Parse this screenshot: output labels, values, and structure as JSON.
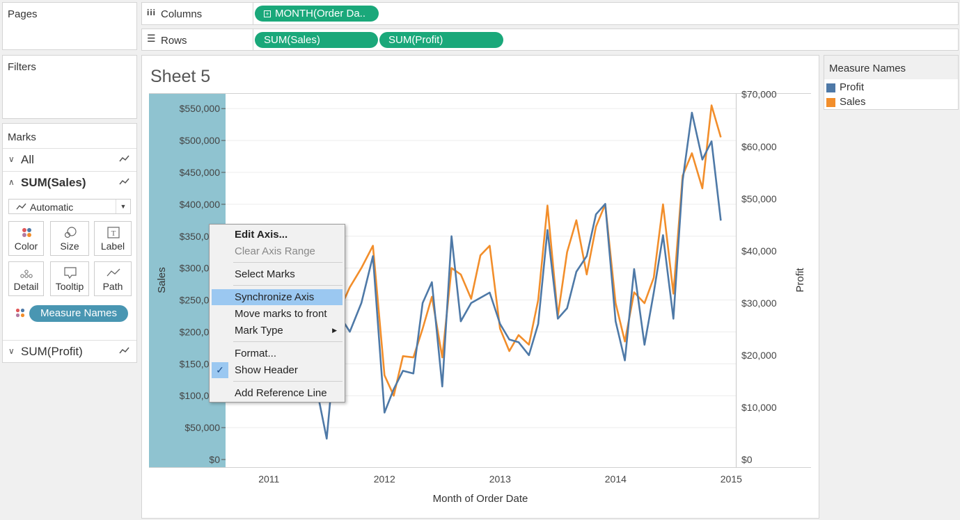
{
  "shelves": {
    "pages_title": "Pages",
    "columns_label": "Columns",
    "rows_label": "Rows",
    "columns_pill": "MONTH(Order Da..",
    "rows_pills": [
      "SUM(Sales)",
      "SUM(Profit)"
    ],
    "filters_title": "Filters"
  },
  "marks": {
    "title": "Marks",
    "all_label": "All",
    "sales_label": "SUM(Sales)",
    "profit_label": "SUM(Profit)",
    "mark_type": "Automatic",
    "cards": [
      {
        "label": "Color",
        "icon": "color-icon"
      },
      {
        "label": "Size",
        "icon": "size-icon"
      },
      {
        "label": "Label",
        "icon": "label-icon"
      },
      {
        "label": "Detail",
        "icon": "detail-icon"
      },
      {
        "label": "Tooltip",
        "icon": "tooltip-icon"
      },
      {
        "label": "Path",
        "icon": "path-icon"
      }
    ],
    "measure_names_pill": "Measure Names"
  },
  "sheet": {
    "title": "Sheet 5"
  },
  "legend": {
    "title": "Measure Names",
    "items": [
      {
        "label": "Profit",
        "color": "#4e79a7"
      },
      {
        "label": "Sales",
        "color": "#f28e2b"
      }
    ]
  },
  "context_menu": {
    "items": [
      {
        "label": "Edit Axis...",
        "state": "bold"
      },
      {
        "label": "Clear Axis Range",
        "state": "disabled"
      },
      {
        "label": "Select Marks",
        "state": "normal"
      },
      {
        "label": "Synchronize Axis",
        "state": "highlighted"
      },
      {
        "label": "Move marks to front",
        "state": "normal"
      },
      {
        "label": "Mark Type",
        "state": "submenu"
      },
      {
        "label": "Format...",
        "state": "normal"
      },
      {
        "label": "Show Header",
        "state": "checked"
      },
      {
        "label": "Add Reference Line",
        "state": "normal"
      }
    ]
  },
  "chart_data": {
    "type": "line",
    "xlabel": "Month of Order Date",
    "ylabel_left": "Sales",
    "ylabel_right": "Profit",
    "x_ticks": [
      "2011",
      "2012",
      "2013",
      "2014",
      "2015"
    ],
    "y_left_ticks": [
      "$550,000",
      "$500,000",
      "$450,000",
      "$400,000",
      "$350,000",
      "$300,000",
      "$250,000",
      "$200,000",
      "$150,000",
      "$100,000",
      "$50,000",
      "$0"
    ],
    "y_left_values": [
      550000,
      500000,
      450000,
      400000,
      350000,
      300000,
      250000,
      200000,
      150000,
      100000,
      50000,
      0
    ],
    "y_right_ticks": [
      "$70,000",
      "$60,000",
      "$50,000",
      "$40,000",
      "$30,000",
      "$20,000",
      "$10,000",
      "$0"
    ],
    "y_right_values": [
      70000,
      60000,
      50000,
      40000,
      30000,
      20000,
      10000,
      0
    ],
    "y_left_range": [
      0,
      560000
    ],
    "y_right_range": [
      0,
      68500
    ],
    "x_range": [
      2010.625,
      2015.04
    ],
    "series": [
      {
        "name": "Sales",
        "color": "#f28e2b",
        "axis": "left",
        "x": [
          2011.2,
          2011.3,
          2011.4,
          2011.5,
          2011.6,
          2011.7,
          2011.8,
          2011.9,
          2012.0,
          2012.08,
          2012.16,
          2012.25,
          2012.33,
          2012.41,
          2012.5,
          2012.58,
          2012.66,
          2012.75,
          2012.83,
          2012.91,
          2013.0,
          2013.08,
          2013.16,
          2013.25,
          2013.33,
          2013.41,
          2013.5,
          2013.58,
          2013.66,
          2013.75,
          2013.83,
          2013.91,
          2014.0,
          2014.08,
          2014.16,
          2014.25,
          2014.33,
          2014.41,
          2014.5,
          2014.58,
          2014.66,
          2014.75,
          2014.83,
          2014.91
        ],
        "y": [
          90000,
          160000,
          185000,
          200000,
          230000,
          270000,
          300000,
          335000,
          132000,
          100000,
          162000,
          160000,
          205000,
          255000,
          160000,
          300000,
          290000,
          252000,
          320000,
          335000,
          205000,
          170000,
          195000,
          180000,
          250000,
          398000,
          225000,
          325000,
          375000,
          290000,
          365000,
          400000,
          245000,
          185000,
          262000,
          245000,
          285000,
          400000,
          260000,
          445000,
          480000,
          425000,
          555000,
          505000
        ]
      },
      {
        "name": "Profit",
        "color": "#4e79a7",
        "axis": "right",
        "x": [
          2011.2,
          2011.3,
          2011.4,
          2011.5,
          2011.6,
          2011.7,
          2011.8,
          2011.9,
          2012.0,
          2012.08,
          2012.16,
          2012.25,
          2012.33,
          2012.41,
          2012.5,
          2012.58,
          2012.66,
          2012.75,
          2012.83,
          2012.91,
          2013.0,
          2013.08,
          2013.16,
          2013.25,
          2013.33,
          2013.41,
          2013.5,
          2013.58,
          2013.66,
          2013.75,
          2013.83,
          2013.91,
          2014.0,
          2014.08,
          2014.16,
          2014.25,
          2014.33,
          2014.41,
          2014.5,
          2014.58,
          2014.66,
          2014.75,
          2014.83,
          2014.91
        ],
        "y": [
          14000,
          13000,
          15000,
          4000,
          28000,
          24500,
          30000,
          39000,
          9000,
          13500,
          17000,
          16500,
          30000,
          34000,
          14000,
          42800,
          26500,
          30000,
          31000,
          32000,
          26000,
          23000,
          22500,
          20000,
          26000,
          44000,
          27000,
          29000,
          36000,
          39000,
          47000,
          49000,
          26500,
          19000,
          36500,
          22000,
          32000,
          43000,
          27000,
          53500,
          66500,
          57500,
          61000,
          45800
        ]
      }
    ]
  }
}
